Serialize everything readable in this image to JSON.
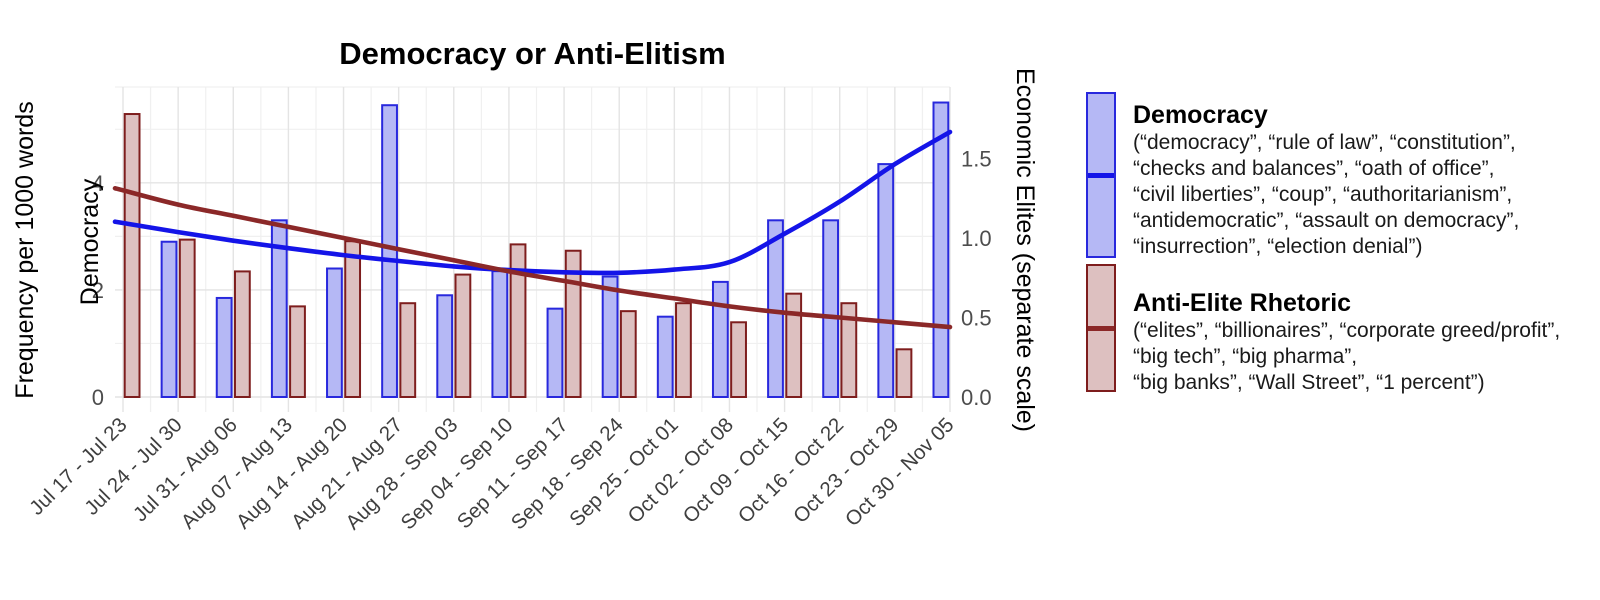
{
  "title": "Democracy or Anti-Elitism",
  "chart_data": {
    "type": "bar",
    "title": "Democracy or Anti-Elitism",
    "categories": [
      "Jul 17 - Jul 23",
      "Jul 24 - Jul 30",
      "Jul 31 - Aug 06",
      "Aug 07 - Aug 13",
      "Aug 14 - Aug 20",
      "Aug 21 - Aug 27",
      "Aug 28 - Sep 03",
      "Sep 04 - Sep 10",
      "Sep 11 - Sep 17",
      "Sep 18 - Sep 24",
      "Sep 25 - Oct 01",
      "Oct 02 - Oct 08",
      "Oct 09 - Oct 15",
      "Oct 16 - Oct 22",
      "Oct 23 - Oct 29",
      "Oct 30 - Nov 05"
    ],
    "series": [
      {
        "name": "Democracy",
        "axis": "left",
        "fill": "#b5b8f5",
        "stroke": "#2828dd",
        "values": [
          null,
          2.9,
          1.85,
          3.3,
          2.4,
          5.45,
          1.9,
          2.35,
          1.65,
          2.25,
          1.5,
          2.15,
          3.3,
          3.3,
          4.35,
          5.5
        ]
      },
      {
        "name": "Anti-Elite Rhetoric",
        "axis": "right",
        "fill": "#ddc0c0",
        "stroke": "#7e1d1d",
        "values": [
          1.78,
          0.99,
          0.79,
          0.57,
          0.98,
          0.59,
          0.77,
          0.96,
          0.92,
          0.54,
          0.59,
          0.47,
          0.65,
          0.59,
          0.3,
          null
        ]
      }
    ],
    "trends": [
      {
        "name": "Democracy smoothed trend",
        "axis": "left",
        "color": "#1414e8",
        "values": [
          3.25,
          3.08,
          2.92,
          2.78,
          2.65,
          2.54,
          2.44,
          2.37,
          2.33,
          2.32,
          2.38,
          2.52,
          3.05,
          3.65,
          4.35,
          4.95
        ]
      },
      {
        "name": "Anti-Elite smoothed trend",
        "axis": "right",
        "color": "#8b2828",
        "values": [
          1.3,
          1.21,
          1.14,
          1.07,
          1.0,
          0.93,
          0.86,
          0.79,
          0.73,
          0.67,
          0.62,
          0.57,
          0.53,
          0.5,
          0.47,
          0.44
        ]
      }
    ],
    "left_axis": {
      "outer_label": "Frequency per 1000 words",
      "label": "Democracy",
      "tick_labels": [
        "0",
        "2",
        "4"
      ],
      "tick_values": [
        0,
        2,
        4
      ],
      "range": [
        0,
        5.79
      ]
    },
    "right_axis": {
      "label": "Economic Elites (separate scale)",
      "tick_labels": [
        "0.0",
        "0.5",
        "1.0",
        "1.5"
      ],
      "tick_values": [
        0,
        0.5,
        1.0,
        1.5
      ],
      "range": [
        0,
        1.95
      ]
    },
    "grid": true,
    "legend_position": "right",
    "colors": {
      "grid_major": "#e4e4e4",
      "grid_minor": "#f0f0f0",
      "tick_text": "#4d4d4d",
      "x_label_text": "#3f3f3f"
    }
  },
  "legend": {
    "items": [
      {
        "title": "Democracy",
        "description": "(“democracy”, “rule of law”, “constitution”,\n“checks and balances”, “oath of office”,\n“civil liberties”, “coup”, “authoritarianism”,\n“antidemocratic”, “assault on democracy”,\n“insurrection”, “election denial”)"
      },
      {
        "title": "Anti-Elite Rhetoric",
        "description": "(“elites”, “billionaires”, “corporate greed/profit”,\n“big tech”, “big pharma”,\n“big banks”, “Wall Street”, “1 percent”)"
      }
    ]
  }
}
